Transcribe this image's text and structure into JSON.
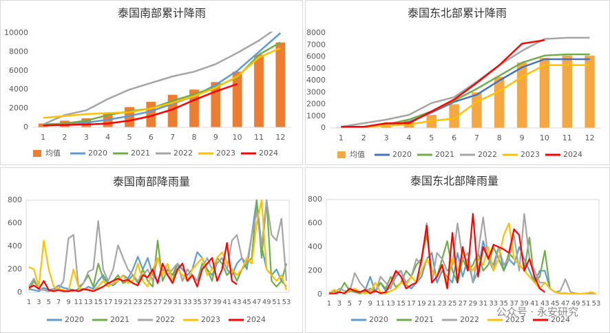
{
  "chart_data": [
    {
      "type": "combo",
      "title": "泰国南部累计降雨",
      "categories": [
        1,
        2,
        3,
        4,
        5,
        6,
        7,
        8,
        9,
        10,
        11,
        12
      ],
      "ylim": [
        0,
        10000
      ],
      "yticks": [
        0,
        2000,
        4000,
        6000,
        8000,
        10000
      ],
      "grid": false,
      "legend": "bottom",
      "series": [
        {
          "name": "均值",
          "type": "bar",
          "color": "#ED7D31",
          "values": [
            400,
            700,
            950,
            1500,
            2150,
            2700,
            3450,
            4000,
            4800,
            5900,
            7700,
            9000
          ]
        },
        {
          "name": "2020",
          "color": "#5B9BD5",
          "values": [
            200,
            300,
            500,
            800,
            1200,
            1700,
            2500,
            3300,
            4500,
            6000,
            8000,
            10000
          ]
        },
        {
          "name": "2021",
          "color": "#70AD47",
          "values": [
            300,
            400,
            700,
            1300,
            1700,
            2000,
            2800,
            3500,
            4300,
            5300,
            7700,
            9000
          ]
        },
        {
          "name": "2022",
          "color": "#A5A5A5",
          "values": [
            300,
            1300,
            1800,
            3000,
            4000,
            4700,
            5400,
            5900,
            6700,
            7900,
            9200,
            10800
          ]
        },
        {
          "name": "2023",
          "color": "#FFC000",
          "values": [
            1000,
            1200,
            1400,
            1500,
            1600,
            2000,
            2600,
            3300,
            4200,
            5400,
            7400,
            8400
          ]
        },
        {
          "name": "2024",
          "color": "#FF0000",
          "values": [
            200,
            250,
            300,
            400,
            700,
            1200,
            1900,
            2900,
            3800,
            4600,
            null,
            null
          ]
        }
      ]
    },
    {
      "type": "combo",
      "title": "泰国东北部累计降雨",
      "categories": [
        1,
        2,
        3,
        4,
        5,
        6,
        7,
        8,
        9,
        10,
        11,
        12
      ],
      "ylim": [
        0,
        8000
      ],
      "yticks": [
        0,
        1000,
        2000,
        3000,
        4000,
        5000,
        6000,
        7000,
        8000
      ],
      "grid": false,
      "legend": "bottom",
      "series": [
        {
          "name": "均值",
          "type": "bar",
          "color": "#F5A742",
          "values": [
            50,
            100,
            300,
            600,
            1100,
            2000,
            3000,
            4300,
            5500,
            5900,
            6100,
            6100
          ]
        },
        {
          "name": "2020",
          "color": "#4472C4",
          "values": [
            50,
            100,
            200,
            500,
            1300,
            2200,
            2800,
            4000,
            5100,
            5800,
            5800,
            5800
          ]
        },
        {
          "name": "2021",
          "color": "#70AD47",
          "values": [
            50,
            100,
            300,
            700,
            1400,
            2300,
            3300,
            4400,
            5500,
            6100,
            6200,
            6200
          ]
        },
        {
          "name": "2022",
          "color": "#A5A5A5",
          "values": [
            100,
            400,
            700,
            1100,
            2100,
            2600,
            3900,
            5300,
            6500,
            7500,
            7600,
            7600
          ]
        },
        {
          "name": "2023",
          "color": "#FFC000",
          "values": [
            0,
            100,
            200,
            300,
            600,
            800,
            2200,
            3100,
            4300,
            5300,
            5300,
            5300
          ]
        },
        {
          "name": "2024",
          "color": "#FF0000",
          "values": [
            100,
            100,
            400,
            400,
            1400,
            2400,
            3800,
            5300,
            7100,
            7400,
            null,
            null
          ]
        }
      ]
    },
    {
      "type": "line",
      "title": "泰国南部降雨量",
      "categories": [
        1,
        null,
        3,
        null,
        5,
        null,
        7,
        null,
        9,
        null,
        11,
        null,
        13,
        null,
        15,
        null,
        17,
        null,
        19,
        null,
        21,
        null,
        23,
        null,
        25,
        null,
        27,
        null,
        29,
        null,
        31,
        null,
        33,
        null,
        35,
        null,
        37,
        null,
        39,
        null,
        41,
        null,
        43,
        null,
        45,
        null,
        47,
        null,
        49,
        null,
        51,
        null,
        53
      ],
      "ylim": [
        0,
        800
      ],
      "yticks": [
        0,
        200,
        400,
        600,
        800
      ],
      "grid": false,
      "legend": "bottom",
      "series": [
        {
          "name": "2020",
          "color": "#5B9BD5",
          "values": [
            30,
            20,
            10,
            40,
            20,
            30,
            60,
            40,
            30,
            20,
            10,
            20,
            50,
            30,
            100,
            150,
            80,
            60,
            100,
            150,
            120,
            200,
            310,
            200,
            300,
            150,
            100,
            200,
            150,
            100,
            250,
            200,
            150,
            200,
            350,
            300,
            200,
            150,
            250,
            300,
            200,
            150,
            250,
            300,
            200,
            500,
            800,
            400,
            200,
            150,
            200,
            100,
            50
          ]
        },
        {
          "name": "2021",
          "color": "#70AD47",
          "values": [
            20,
            100,
            30,
            20,
            10,
            30,
            20,
            10,
            20,
            10,
            30,
            80,
            150,
            50,
            250,
            120,
            80,
            100,
            150,
            80,
            100,
            150,
            80,
            200,
            100,
            50,
            450,
            100,
            200,
            150,
            250,
            100,
            200,
            150,
            100,
            250,
            200,
            100,
            300,
            250,
            150,
            200,
            100,
            200,
            250,
            300,
            800,
            300,
            800,
            100,
            50,
            100,
            250
          ]
        },
        {
          "name": "2022",
          "color": "#A5A5A5",
          "values": [
            50,
            120,
            30,
            20,
            10,
            20,
            30,
            100,
            470,
            500,
            50,
            80,
            180,
            200,
            620,
            200,
            100,
            200,
            410,
            300,
            200,
            150,
            100,
            150,
            200,
            100,
            300,
            200,
            150,
            200,
            250,
            100,
            200,
            150,
            100,
            200,
            300,
            200,
            250,
            300,
            200,
            450,
            500,
            300,
            250,
            500,
            700,
            400,
            800,
            500,
            450,
            640,
            100
          ]
        },
        {
          "name": "2023",
          "color": "#FFC000",
          "values": [
            220,
            200,
            50,
            450,
            200,
            50,
            30,
            20,
            10,
            200,
            50,
            20,
            30,
            10,
            50,
            100,
            50,
            80,
            100,
            150,
            80,
            100,
            250,
            100,
            50,
            200,
            300,
            150,
            250,
            100,
            200,
            150,
            100,
            200,
            250,
            300,
            150,
            200,
            300,
            350,
            250,
            200,
            150,
            200,
            300,
            250,
            600,
            800,
            200,
            150,
            100,
            150,
            20
          ]
        },
        {
          "name": "2024",
          "color": "#FF0000",
          "values": [
            40,
            60,
            30,
            100,
            20,
            10,
            20,
            10,
            10,
            20,
            10,
            30,
            20,
            10,
            30,
            50,
            80,
            100,
            120,
            100,
            110,
            80,
            60,
            150,
            130,
            200,
            80,
            250,
            150,
            80,
            200,
            250,
            100,
            150,
            50,
            200,
            250,
            300,
            100,
            200,
            430,
            100,
            70,
            null,
            null,
            null,
            null,
            null,
            null,
            null,
            null,
            null,
            null
          ]
        }
      ]
    },
    {
      "type": "line",
      "title": "泰国东北部降雨量",
      "categories": [
        1,
        null,
        3,
        null,
        5,
        null,
        7,
        null,
        9,
        null,
        11,
        null,
        13,
        null,
        15,
        null,
        17,
        null,
        19,
        null,
        21,
        null,
        23,
        null,
        25,
        null,
        27,
        null,
        29,
        null,
        31,
        null,
        33,
        null,
        35,
        null,
        37,
        null,
        39,
        null,
        41,
        null,
        43,
        null,
        45,
        null,
        47,
        null,
        49,
        null,
        51,
        null,
        53
      ],
      "ylim": [
        0,
        800
      ],
      "yticks": [
        0,
        200,
        400,
        600,
        800
      ],
      "grid": false,
      "legend": "bottom",
      "series": [
        {
          "name": "2020",
          "color": "#5B9BD5",
          "values": [
            10,
            30,
            20,
            10,
            40,
            20,
            10,
            30,
            150,
            20,
            100,
            30,
            60,
            150,
            200,
            80,
            50,
            100,
            150,
            300,
            350,
            100,
            200,
            150,
            100,
            350,
            150,
            300,
            100,
            200,
            450,
            300,
            250,
            400,
            200,
            300,
            250,
            400,
            300,
            200,
            100,
            200,
            200,
            50,
            20,
            10,
            10,
            5,
            5,
            5,
            10,
            5,
            5
          ]
        },
        {
          "name": "2021",
          "color": "#70AD47",
          "values": [
            5,
            10,
            20,
            100,
            30,
            20,
            10,
            20,
            50,
            30,
            100,
            50,
            150,
            60,
            100,
            200,
            150,
            250,
            300,
            500,
            200,
            150,
            300,
            450,
            200,
            100,
            300,
            200,
            250,
            350,
            200,
            250,
            400,
            300,
            200,
            350,
            300,
            250,
            200,
            480,
            100,
            150,
            370,
            50,
            20,
            10,
            5,
            5,
            5,
            5,
            5,
            5,
            5
          ]
        },
        {
          "name": "2022",
          "color": "#A5A5A5",
          "values": [
            20,
            10,
            50,
            30,
            20,
            180,
            100,
            50,
            30,
            20,
            150,
            100,
            50,
            180,
            200,
            100,
            150,
            300,
            250,
            600,
            100,
            350,
            300,
            200,
            250,
            600,
            300,
            350,
            100,
            350,
            650,
            300,
            200,
            400,
            250,
            300,
            500,
            200,
            680,
            300,
            200,
            100,
            100,
            50,
            20,
            30,
            130,
            20,
            10,
            5,
            5,
            10,
            5
          ]
        },
        {
          "name": "2023",
          "color": "#FFC000",
          "values": [
            10,
            40,
            20,
            10,
            30,
            50,
            20,
            10,
            20,
            100,
            20,
            10,
            30,
            50,
            100,
            80,
            150,
            100,
            200,
            300,
            200,
            150,
            250,
            100,
            300,
            200,
            350,
            250,
            200,
            300,
            250,
            400,
            200,
            300,
            500,
            600,
            300,
            250,
            200,
            150,
            100,
            50,
            100,
            50,
            20,
            10,
            5,
            5,
            5,
            5,
            10,
            20,
            5
          ]
        },
        {
          "name": "2024",
          "color": "#FF0000",
          "values": [
            10,
            5,
            20,
            10,
            50,
            30,
            20,
            40,
            10,
            30,
            10,
            20,
            100,
            200,
            150,
            50,
            80,
            100,
            300,
            580,
            100,
            150,
            250,
            50,
            520,
            100,
            400,
            200,
            680,
            150,
            400,
            300,
            420,
            400,
            380,
            350,
            550,
            500,
            200,
            300,
            150,
            50,
            20,
            null,
            null,
            null,
            null,
            null,
            null,
            null,
            null,
            null,
            null
          ]
        }
      ]
    }
  ],
  "watermark": "公众号 · 永安研究"
}
